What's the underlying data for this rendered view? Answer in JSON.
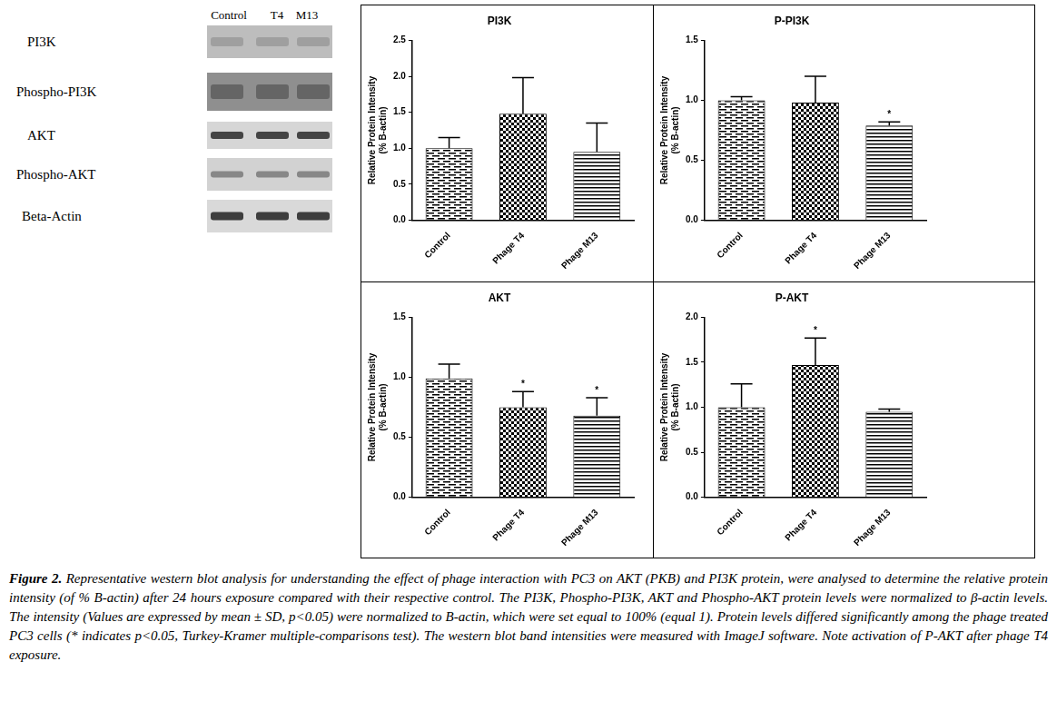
{
  "blot": {
    "columns": [
      "Control",
      "T4",
      "M13"
    ],
    "rows": [
      "PI3K",
      "Phospho-PI3K",
      "AKT",
      "Phospho-AKT",
      "Beta-Actin"
    ]
  },
  "chart_data": [
    {
      "type": "bar",
      "title": "PI3K",
      "y_label": [
        "Relative Protein Intensity",
        "(% B-actin)"
      ],
      "categories": [
        "Control",
        "Phage T4",
        "Phage M13"
      ],
      "values": [
        1.0,
        1.48,
        0.95
      ],
      "errors": [
        0.15,
        0.5,
        0.4
      ],
      "ylim": [
        0,
        2.5
      ],
      "yticks": [
        {
          "value": 0,
          "label": "0.0"
        },
        0.5,
        {
          "value": 1,
          "label": "1.0"
        },
        1.5,
        {
          "value": 2,
          "label": "2.0"
        },
        2.5
      ],
      "grid": false
    },
    {
      "type": "bar",
      "title": "P-PI3K",
      "y_label": [
        "Relative Protein Intensity",
        "(% B-actin)"
      ],
      "categories": [
        "Control",
        "Phage T4",
        "Phage M13"
      ],
      "values": [
        1.0,
        0.98,
        0.79
      ],
      "errors": [
        0.03,
        0.22,
        0.03
      ],
      "ylim": [
        0,
        1.5
      ],
      "yticks": [
        {
          "value": 0,
          "label": "0.0"
        },
        0.5,
        {
          "value": 1,
          "label": "1.0"
        },
        1.5
      ],
      "grid": false,
      "annotations": [
        {
          "category": "Phage M13",
          "text": "*"
        }
      ]
    },
    {
      "type": "bar",
      "title": "AKT",
      "y_label": [
        "Relative Protein Intensity",
        "(% B-actin)"
      ],
      "categories": [
        "Control",
        "Phage T4",
        "Phage M13"
      ],
      "values": [
        0.99,
        0.75,
        0.68
      ],
      "errors": [
        0.12,
        0.13,
        0.15
      ],
      "ylim": [
        0,
        1.5
      ],
      "yticks": [
        {
          "value": 0,
          "label": "0.0"
        },
        0.5,
        {
          "value": 1,
          "label": "1.0"
        },
        1.5
      ],
      "grid": false,
      "annotations": [
        {
          "category": "Phage T4",
          "text": "*"
        },
        {
          "category": "Phage M13",
          "text": "*"
        }
      ]
    },
    {
      "type": "bar",
      "title": "P-AKT",
      "y_label": [
        "Relative Protein Intensity",
        "(% B-actin)"
      ],
      "categories": [
        "Control",
        "Phage T4",
        "Phage M13"
      ],
      "values": [
        1.0,
        1.47,
        0.95
      ],
      "errors": [
        0.26,
        0.3,
        0.03
      ],
      "ylim": [
        0,
        2.0
      ],
      "yticks": [
        {
          "value": 0,
          "label": "0.0"
        },
        0.5,
        {
          "value": 1,
          "label": "1.0"
        },
        1.5,
        {
          "value": 2,
          "label": "2.0"
        }
      ],
      "grid": false,
      "annotations": [
        {
          "category": "Phage T4",
          "text": "*"
        }
      ]
    }
  ],
  "caption": {
    "label": "Figure 2.",
    "text": "Representative western blot analysis for understanding the effect of phage interaction with PC3 on AKT (PKB) and PI3K protein, were analysed to determine the relative protein intensity (of % B-actin) after 24 hours exposure compared with their respective control. The PI3K, Phospho-PI3K, AKT and Phospho-AKT protein levels were normalized to β-actin levels. The intensity (Values are expressed by mean ± SD, p<0.05) were normalized to B-actin, which were set equal to 100% (equal 1). Protein levels differed significantly among the phage treated PC3 cells (* indicates p<0.05, Turkey-Kramer multiple-comparisons test). The western blot band intensities were measured with ImageJ software. Note activation of P-AKT after phage T4 exposure."
  }
}
